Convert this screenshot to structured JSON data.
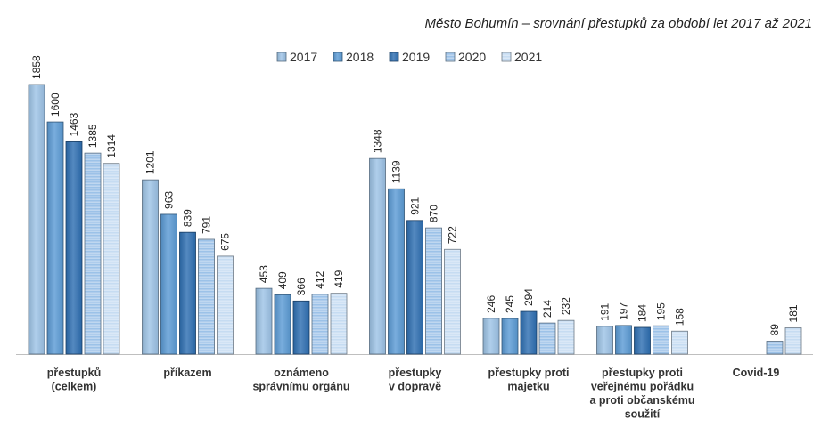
{
  "chart_data": {
    "type": "bar",
    "title": "Město Bohumín – srovnání přestupků za období let 2017 až 2021",
    "xlabel": "",
    "ylabel": "",
    "ylim": [
      0,
      1950
    ],
    "grid": false,
    "legend_position": "top",
    "categories": [
      [
        "přestupků",
        "(celkem)"
      ],
      [
        "příkazem"
      ],
      [
        "oznámeno",
        "správnímu orgánu"
      ],
      [
        "přestupky",
        "v dopravě"
      ],
      [
        "přestupky proti",
        "majetku"
      ],
      [
        "přestupky proti",
        "veřejnému pořádku",
        "a proti občanskému",
        "soužití"
      ],
      [
        "Covid-19"
      ]
    ],
    "series": [
      {
        "name": "2017",
        "values": [
          1858,
          1201,
          453,
          1348,
          246,
          191,
          null
        ],
        "color": "#9dc3e6",
        "pattern": "gradient"
      },
      {
        "name": "2018",
        "values": [
          1600,
          963,
          409,
          1139,
          245,
          197,
          null
        ],
        "color": "#5b9bd5",
        "pattern": "gradient"
      },
      {
        "name": "2019",
        "values": [
          1463,
          839,
          366,
          921,
          294,
          184,
          null
        ],
        "color": "#2e6fb2",
        "pattern": "gradient"
      },
      {
        "name": "2020",
        "values": [
          1385,
          791,
          412,
          870,
          214,
          195,
          89
        ],
        "color": "#9cc2e8",
        "pattern": "stripes"
      },
      {
        "name": "2021",
        "values": [
          1314,
          675,
          419,
          722,
          232,
          158,
          181
        ],
        "color": "#c6dcf2",
        "pattern": "stripes"
      }
    ]
  }
}
